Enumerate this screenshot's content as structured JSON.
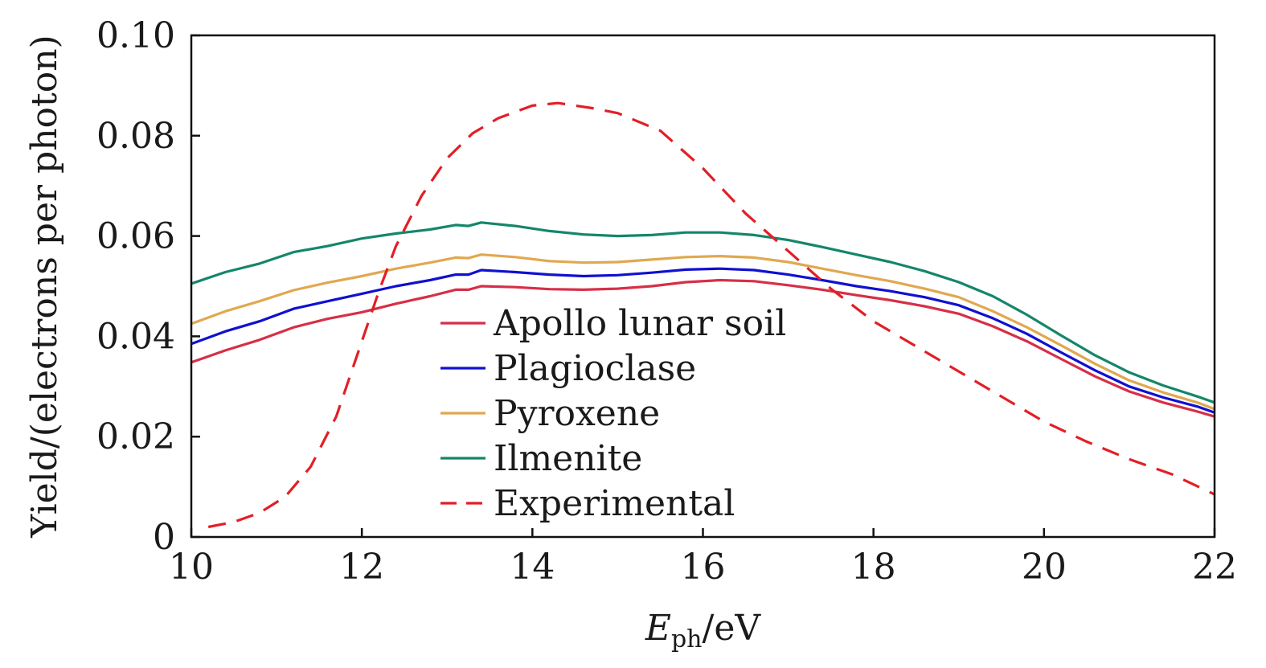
{
  "chart_data": {
    "type": "line",
    "title": "",
    "xlabel": {
      "main": "E",
      "sub": "ph",
      "unit": "/eV"
    },
    "ylabel": "Yield/(electrons per photon)",
    "xlim": [
      10,
      22
    ],
    "ylim": [
      0,
      0.1
    ],
    "xticks": [
      10,
      12,
      14,
      16,
      18,
      20,
      22
    ],
    "xtick_labels": [
      "10",
      "12",
      "14",
      "16",
      "18",
      "20",
      "22"
    ],
    "yticks": [
      0,
      0.02,
      0.04,
      0.06,
      0.08,
      0.1
    ],
    "ytick_labels": [
      "0",
      "0.02",
      "0.04",
      "0.06",
      "0.08",
      "0.10"
    ],
    "grid": false,
    "legend_position": "center",
    "series": [
      {
        "name": "Apollo lunar soil",
        "color": "#d62f47",
        "dash": "solid",
        "x": [
          10,
          10.4,
          10.8,
          11.2,
          11.6,
          12.0,
          12.4,
          12.8,
          13.1,
          13.25,
          13.4,
          13.8,
          14.2,
          14.6,
          15.0,
          15.4,
          15.8,
          16.2,
          16.6,
          17.0,
          17.4,
          17.8,
          18.2,
          18.6,
          19.0,
          19.4,
          19.8,
          20.2,
          20.6,
          21.0,
          21.4,
          21.8,
          22.0
        ],
        "y": [
          0.0348,
          0.0372,
          0.0393,
          0.0418,
          0.0435,
          0.0448,
          0.0465,
          0.048,
          0.0493,
          0.0493,
          0.05,
          0.0498,
          0.0494,
          0.0493,
          0.0495,
          0.05,
          0.0508,
          0.0512,
          0.051,
          0.0502,
          0.0493,
          0.0482,
          0.0472,
          0.046,
          0.0445,
          0.042,
          0.039,
          0.0355,
          0.032,
          0.029,
          0.0268,
          0.025,
          0.024
        ]
      },
      {
        "name": "Plagioclase",
        "color": "#1010d0",
        "dash": "solid",
        "x": [
          10,
          10.4,
          10.8,
          11.2,
          11.6,
          12.0,
          12.4,
          12.8,
          13.1,
          13.25,
          13.4,
          13.8,
          14.2,
          14.6,
          15.0,
          15.4,
          15.8,
          16.2,
          16.6,
          17.0,
          17.4,
          17.8,
          18.2,
          18.6,
          19.0,
          19.4,
          19.8,
          20.2,
          20.6,
          21.0,
          21.4,
          21.8,
          22.0
        ],
        "y": [
          0.0385,
          0.041,
          0.043,
          0.0455,
          0.047,
          0.0485,
          0.05,
          0.0512,
          0.0523,
          0.0523,
          0.0532,
          0.0528,
          0.0523,
          0.052,
          0.0522,
          0.0527,
          0.0533,
          0.0535,
          0.0532,
          0.0523,
          0.0512,
          0.05,
          0.049,
          0.0478,
          0.0462,
          0.0436,
          0.0405,
          0.0368,
          0.0332,
          0.03,
          0.0278,
          0.026,
          0.0248
        ]
      },
      {
        "name": "Pyroxene",
        "color": "#e0a850",
        "dash": "solid",
        "x": [
          10,
          10.4,
          10.8,
          11.2,
          11.6,
          12.0,
          12.4,
          12.8,
          13.1,
          13.25,
          13.4,
          13.8,
          14.2,
          14.6,
          15.0,
          15.4,
          15.8,
          16.2,
          16.6,
          17.0,
          17.4,
          17.8,
          18.2,
          18.6,
          19.0,
          19.4,
          19.8,
          20.2,
          20.6,
          21.0,
          21.4,
          21.8,
          22.0
        ],
        "y": [
          0.0425,
          0.045,
          0.047,
          0.0492,
          0.0507,
          0.052,
          0.0535,
          0.0547,
          0.0557,
          0.0556,
          0.0563,
          0.0558,
          0.055,
          0.0547,
          0.0548,
          0.0553,
          0.0558,
          0.056,
          0.0557,
          0.0548,
          0.0535,
          0.0522,
          0.051,
          0.0495,
          0.0478,
          0.045,
          0.0418,
          0.0382,
          0.0345,
          0.0312,
          0.0288,
          0.0268,
          0.0255
        ]
      },
      {
        "name": "Ilmenite",
        "color": "#14866a",
        "dash": "solid",
        "x": [
          10,
          10.4,
          10.8,
          11.2,
          11.6,
          12.0,
          12.4,
          12.8,
          13.1,
          13.25,
          13.4,
          13.8,
          14.2,
          14.6,
          15.0,
          15.4,
          15.8,
          16.2,
          16.6,
          17.0,
          17.4,
          17.8,
          18.2,
          18.6,
          19.0,
          19.4,
          19.8,
          20.2,
          20.6,
          21.0,
          21.4,
          21.8,
          22.0
        ],
        "y": [
          0.0505,
          0.0528,
          0.0545,
          0.0568,
          0.058,
          0.0595,
          0.0605,
          0.0613,
          0.0622,
          0.062,
          0.0627,
          0.062,
          0.061,
          0.0603,
          0.06,
          0.0602,
          0.0607,
          0.0607,
          0.0602,
          0.0592,
          0.0578,
          0.0563,
          0.0548,
          0.053,
          0.0508,
          0.048,
          0.0443,
          0.0402,
          0.0362,
          0.0328,
          0.0302,
          0.028,
          0.0268
        ]
      },
      {
        "name": "Experimental",
        "color": "#e21f26",
        "dash": "dashed",
        "x": [
          10.2,
          10.5,
          10.8,
          11.1,
          11.4,
          11.7,
          12.0,
          12.2,
          12.4,
          12.7,
          13.0,
          13.3,
          13.6,
          14.0,
          14.3,
          14.7,
          15.0,
          15.5,
          16.0,
          16.5,
          17.0,
          17.5,
          18.0,
          18.5,
          19.0,
          19.5,
          20.0,
          20.5,
          21.0,
          21.5,
          22.0
        ],
        "y": [
          0.002,
          0.003,
          0.0048,
          0.008,
          0.014,
          0.024,
          0.039,
          0.049,
          0.058,
          0.068,
          0.0755,
          0.0805,
          0.0835,
          0.086,
          0.0865,
          0.0855,
          0.0845,
          0.081,
          0.0735,
          0.0645,
          0.057,
          0.0495,
          0.043,
          0.038,
          0.033,
          0.028,
          0.023,
          0.019,
          0.0155,
          0.0125,
          0.0085
        ]
      }
    ]
  }
}
